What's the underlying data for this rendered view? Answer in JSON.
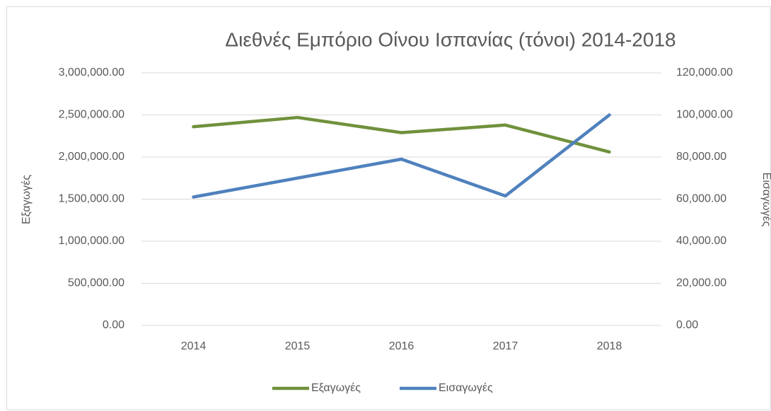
{
  "chart_data": {
    "type": "line",
    "title": "Διεθνές Εμπόριο Οίνου Ισπανίας (τόνοι) 2014-2018",
    "y_label": "Εξαγωγές",
    "y2_label": "Εισαγωγές",
    "categories": [
      "2014",
      "2015",
      "2016",
      "2017",
      "2018"
    ],
    "series": [
      {
        "name": "Εξαγωγές",
        "color": "#70913c",
        "values": [
          2360000,
          2470000,
          2290000,
          2380000,
          2060000
        ]
      },
      {
        "name": "Εισαγωγές",
        "color": "#4f81bd",
        "axis": "y2",
        "values": [
          61000,
          70000,
          79000,
          61500,
          100000
        ]
      }
    ],
    "ylim": [
      0,
      3000000
    ],
    "yticks": [
      {
        "value": 0,
        "label": "0.00"
      },
      {
        "value": 500000,
        "label": "500,000.00"
      },
      {
        "value": 1000000,
        "label": "1,000,000.00"
      },
      {
        "value": 1500000,
        "label": "1,500,000.00"
      },
      {
        "value": 2000000,
        "label": "2,000,000.00"
      },
      {
        "value": 2500000,
        "label": "2,500,000.00"
      },
      {
        "value": 3000000,
        "label": "3,000,000.00"
      }
    ],
    "y2lim": [
      0,
      120000
    ],
    "y2ticks": [
      {
        "value": 0,
        "label": "0.00"
      },
      {
        "value": 20000,
        "label": "20,000.00"
      },
      {
        "value": 40000,
        "label": "40,000.00"
      },
      {
        "value": 60000,
        "label": "60,000.00"
      },
      {
        "value": 80000,
        "label": "80,000.00"
      },
      {
        "value": 100000,
        "label": "100,000.00"
      },
      {
        "value": 120000,
        "label": "120,000.00"
      }
    ],
    "grid": true,
    "legend": "bottom"
  }
}
